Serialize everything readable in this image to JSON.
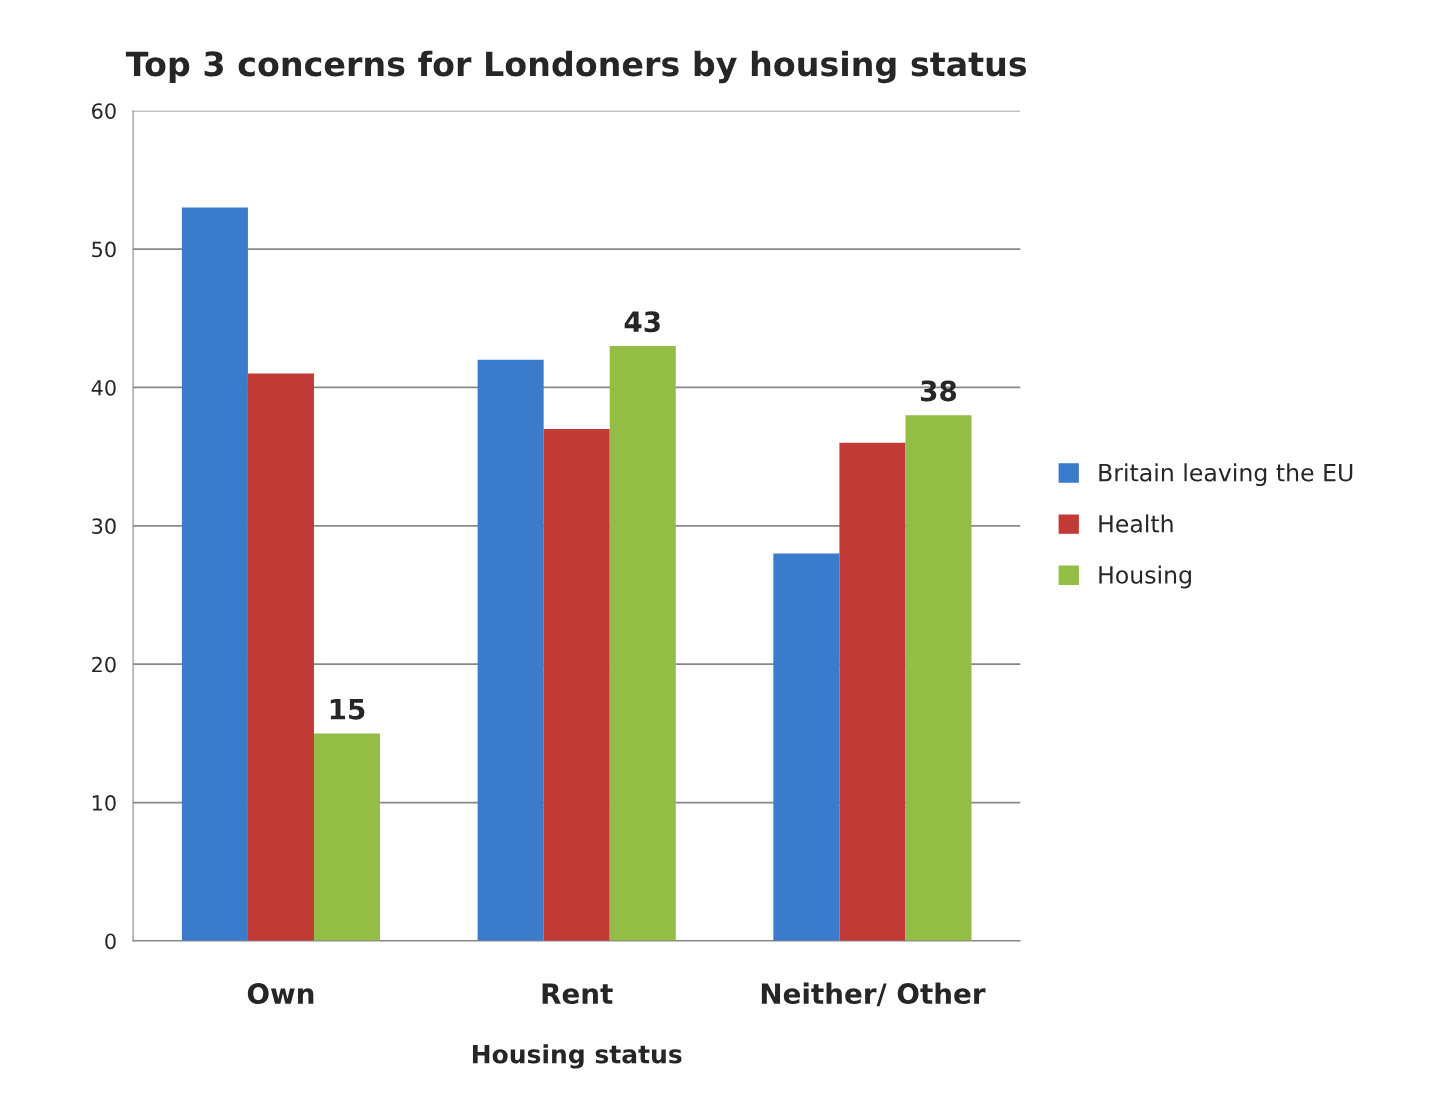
{
  "chart_data": {
    "type": "bar",
    "title": "Top 3 concerns for Londoners by housing status",
    "xlabel": "Housing status",
    "categories": [
      "Own",
      "Rent",
      "Neither/ Other"
    ],
    "series": [
      {
        "name": "Britain leaving the EU",
        "color": "#3a7bcc",
        "values": [
          53,
          42,
          28
        ]
      },
      {
        "name": "Health",
        "color": "#c23a36",
        "values": [
          41,
          37,
          36
        ]
      },
      {
        "name": "Housing",
        "color": "#93bd45",
        "values": [
          15,
          43,
          38
        ],
        "value_labels": [
          "15",
          "43",
          "38"
        ]
      }
    ],
    "ylim": [
      0,
      60
    ],
    "yticks": [
      0,
      10,
      20,
      30,
      40,
      50,
      60
    ],
    "grid": "y",
    "legend": "right"
  }
}
